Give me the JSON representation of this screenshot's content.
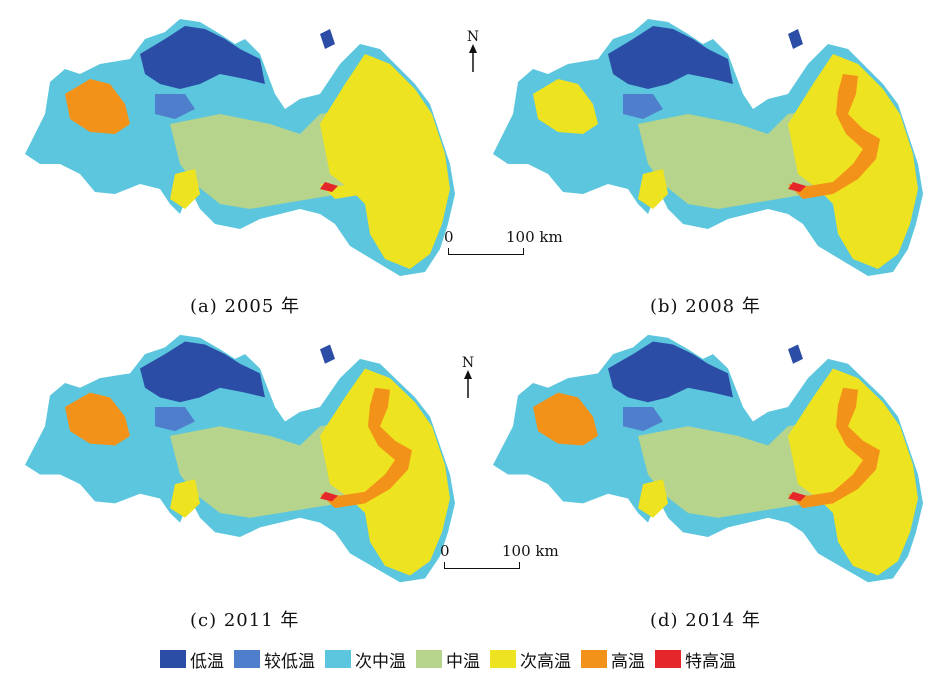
{
  "panels": [
    {
      "caption": "(a) 2005 年",
      "year": 2005,
      "zones": {
        "west_hot_patch": "高温",
        "east_band": "次高温"
      }
    },
    {
      "caption": "(b) 2008 年",
      "year": 2008,
      "zones": {
        "west_hot_patch": "次高温",
        "east_band": "高温"
      }
    },
    {
      "caption": "(c) 2011 年",
      "year": 2011,
      "zones": {
        "west_hot_patch": "高温",
        "east_band": "高温"
      }
    },
    {
      "caption": "(d) 2014 年",
      "year": 2014,
      "zones": {
        "west_hot_patch": "高温",
        "east_band": "高温"
      }
    }
  ],
  "north_label": "N",
  "scale": {
    "zero": "0",
    "distance": "100 km"
  },
  "legend": [
    {
      "label": "低温",
      "color": "#2c4da6"
    },
    {
      "label": "较低温",
      "color": "#4f7fcc"
    },
    {
      "label": "次中温",
      "color": "#5bc6dd"
    },
    {
      "label": "中温",
      "color": "#b6d48c"
    },
    {
      "label": "次高温",
      "color": "#eee320"
    },
    {
      "label": "高温",
      "color": "#f39218"
    },
    {
      "label": "特高温",
      "color": "#e5262a"
    }
  ]
}
